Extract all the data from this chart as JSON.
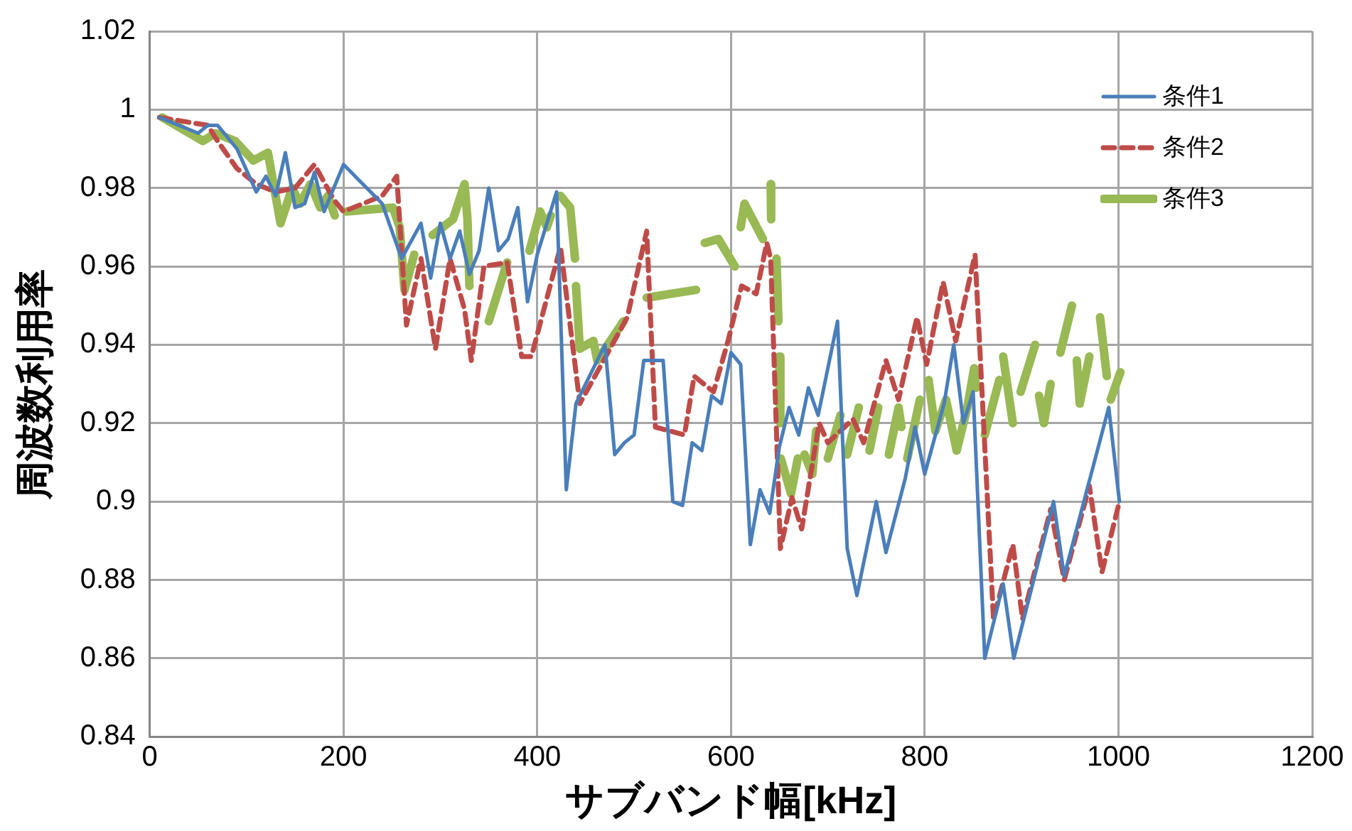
{
  "chart_data": {
    "type": "line",
    "xlabel": "サブバンド幅[kHz]",
    "ylabel": "周波数利用率",
    "xlim": [
      0,
      1200
    ],
    "xticks": [
      0,
      200,
      400,
      600,
      800,
      1000,
      1200
    ],
    "ylim": [
      0.84,
      1.02
    ],
    "yticks": [
      0.84,
      0.86,
      0.88,
      0.9,
      0.92,
      0.94,
      0.96,
      0.98,
      1,
      1.02
    ],
    "grid": true,
    "legend": "top right",
    "marker": "none",
    "series": [
      {
        "name": "条件1",
        "color": "#4a7ebb",
        "line_style": "solid",
        "x": [
          10,
          50,
          60,
          70,
          90,
          110,
          120,
          130,
          140,
          150,
          160,
          170,
          180,
          200,
          240,
          260,
          280,
          290,
          300,
          310,
          320,
          330,
          340,
          350,
          360,
          370,
          380,
          390,
          400,
          420,
          430,
          440,
          460,
          470,
          480,
          490,
          500,
          510,
          530,
          540,
          550,
          560,
          570,
          580,
          590,
          600,
          610,
          620,
          630,
          640,
          650,
          660,
          670,
          680,
          690,
          710,
          720,
          730,
          750,
          760,
          780,
          790,
          800,
          820,
          830,
          840,
          850,
          862,
          881,
          892,
          933,
          944,
          990,
          1001
        ],
        "values": [
          0.998,
          0.994,
          0.996,
          0.996,
          0.99,
          0.979,
          0.983,
          0.978,
          0.989,
          0.975,
          0.976,
          0.984,
          0.974,
          0.986,
          0.976,
          0.962,
          0.971,
          0.957,
          0.971,
          0.962,
          0.969,
          0.958,
          0.964,
          0.98,
          0.964,
          0.967,
          0.975,
          0.951,
          0.963,
          0.979,
          0.903,
          0.925,
          0.935,
          0.94,
          0.912,
          0.915,
          0.917,
          0.936,
          0.936,
          0.9,
          0.899,
          0.915,
          0.913,
          0.927,
          0.925,
          0.938,
          0.935,
          0.889,
          0.903,
          0.897,
          0.914,
          0.924,
          0.917,
          0.929,
          0.922,
          0.946,
          0.888,
          0.876,
          0.9,
          0.887,
          0.906,
          0.919,
          0.907,
          0.925,
          0.94,
          0.92,
          0.928,
          0.86,
          0.879,
          0.86,
          0.9,
          0.881,
          0.924,
          0.9
        ]
      },
      {
        "name": "条件2",
        "color": "#be4b48",
        "line_style": "dashed",
        "x": [
          10,
          60,
          70,
          90,
          110,
          130,
          150,
          170,
          190,
          200,
          240,
          255,
          265,
          280,
          295,
          310,
          325,
          332,
          345,
          369,
          384,
          394,
          424,
          444,
          493,
          513,
          522,
          552,
          562,
          582,
          597,
          611,
          626,
          637,
          641,
          651,
          663,
          673,
          691,
          700,
          726,
          737,
          760,
          773,
          792,
          802,
          819,
          832,
          852,
          871,
          891,
          901,
          930,
          944,
          970,
          983,
          1001
        ],
        "values": [
          0.998,
          0.996,
          0.992,
          0.985,
          0.981,
          0.979,
          0.98,
          0.986,
          0.977,
          0.974,
          0.978,
          0.983,
          0.945,
          0.962,
          0.939,
          0.962,
          0.949,
          0.936,
          0.96,
          0.961,
          0.937,
          0.937,
          0.965,
          0.925,
          0.947,
          0.969,
          0.919,
          0.917,
          0.932,
          0.928,
          0.941,
          0.955,
          0.953,
          0.966,
          0.962,
          0.888,
          0.901,
          0.893,
          0.92,
          0.915,
          0.921,
          0.915,
          0.936,
          0.926,
          0.947,
          0.935,
          0.956,
          0.941,
          0.963,
          0.87,
          0.889,
          0.87,
          0.898,
          0.88,
          0.904,
          0.882,
          0.9
        ]
      },
      {
        "name": "条件3",
        "color": "#98b954",
        "line_style": "solid",
        "x": [
          13,
          55,
          68,
          88,
          107,
          122,
          135,
          147,
          155,
          166,
          176,
          184,
          191,
          197,
          203,
          251,
          258,
          263,
          273,
          283,
          292,
          313,
          325,
          328,
          330,
          332,
          350,
          369,
          380,
          392,
          403,
          410,
          414,
          419,
          424,
          434,
          439,
          439.5,
          440,
          444,
          458,
          462,
          489,
          500,
          513,
          538,
          564,
          568,
          573,
          587,
          604,
          607,
          610,
          614,
          633,
          637,
          641,
          641.5,
          644,
          647,
          649,
          649.5,
          649.7,
          651,
          651.2,
          651.4,
          662,
          669,
          672,
          676,
          684,
          688,
          694,
          700,
          713,
          716,
          720,
          732,
          737,
          743,
          752,
          757,
          763,
          773,
          776,
          779,
          782,
          795,
          800,
          804,
          811,
          822,
          833,
          844,
          851,
          853,
          857,
          862,
          877,
          879,
          881,
          891,
          895,
          899,
          914,
          916,
          918,
          923,
          930,
          935,
          940,
          952,
          955,
          957,
          960,
          970,
          975,
          981,
          988,
          990,
          992,
          1002
        ],
        "values": [
          0.998,
          0.992,
          0.994,
          0.992,
          0.987,
          0.989,
          0.971,
          0.98,
          0.976,
          0.981,
          0.975,
          0.978,
          0.973,
          null,
          0.974,
          0.975,
          0.97,
          0.954,
          0.963,
          null,
          0.968,
          0.972,
          0.981,
          0.972,
          0.955,
          null,
          0.946,
          0.961,
          null,
          0.964,
          0.974,
          0.97,
          0.973,
          null,
          0.978,
          0.975,
          0.962,
          null,
          0.955,
          0.939,
          0.941,
          0.936,
          0.946,
          null,
          0.952,
          0.953,
          0.954,
          null,
          0.966,
          0.967,
          0.96,
          null,
          0.97,
          0.976,
          0.967,
          null,
          0.981,
          0.972,
          null,
          0.962,
          0.946,
          null,
          0.937,
          0.92,
          null,
          0.911,
          0.902,
          0.911,
          null,
          0.912,
          0.907,
          0.918,
          null,
          0.911,
          0.922,
          null,
          0.912,
          0.924,
          null,
          0.913,
          0.924,
          null,
          0.912,
          0.924,
          0.919,
          null,
          0.911,
          0.926,
          null,
          0.931,
          0.918,
          0.926,
          0.913,
          0.924,
          0.934,
          0.929,
          null,
          0.917,
          0.931,
          null,
          0.937,
          0.92,
          null,
          0.928,
          0.94,
          null,
          0.927,
          0.92,
          0.93,
          null,
          0.938,
          0.95,
          null,
          0.936,
          0.925,
          0.937,
          null,
          0.947,
          0.932,
          null,
          0.926,
          0.933
        ]
      }
    ]
  }
}
